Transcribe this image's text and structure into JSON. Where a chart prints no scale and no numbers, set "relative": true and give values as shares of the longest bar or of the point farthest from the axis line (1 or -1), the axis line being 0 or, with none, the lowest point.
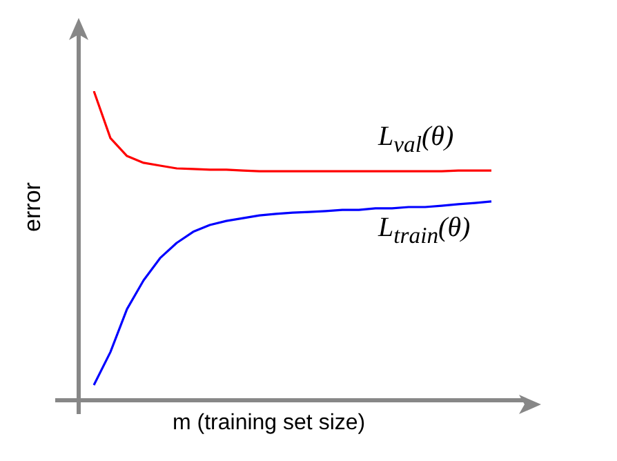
{
  "chart_data": {
    "type": "line",
    "relative": true,
    "ylabel": "error",
    "xlabel": "m (training set size)",
    "legend": false,
    "marker": "none",
    "categories": [
      null,
      null,
      null,
      null,
      null,
      null,
      null,
      null,
      null,
      null,
      null,
      null,
      null,
      null,
      null,
      null,
      null,
      null,
      null,
      null,
      null,
      null,
      null,
      null,
      null
    ],
    "series": [
      {
        "name": "L$_{val}$(θ)",
        "color": "#ff0000",
        "values": [
          1,
          0.848,
          0.79,
          0.768,
          0.759,
          0.75,
          0.748,
          0.746,
          0.746,
          0.743,
          0.741,
          0.741,
          0.741,
          0.741,
          0.741,
          0.741,
          0.741,
          0.741,
          0.741,
          0.741,
          0.741,
          0.741,
          0.743,
          0.743,
          0.743
        ]
      },
      {
        "name": "L$_{train}$(θ)",
        "color": "#0000ff",
        "values": [
          0.049,
          0.156,
          0.295,
          0.388,
          0.46,
          0.509,
          0.545,
          0.567,
          0.58,
          0.589,
          0.598,
          0.603,
          0.607,
          0.609,
          0.612,
          0.616,
          0.616,
          0.621,
          0.621,
          0.625,
          0.625,
          0.629,
          0.634,
          0.638,
          0.643
        ]
      }
    ]
  }
}
